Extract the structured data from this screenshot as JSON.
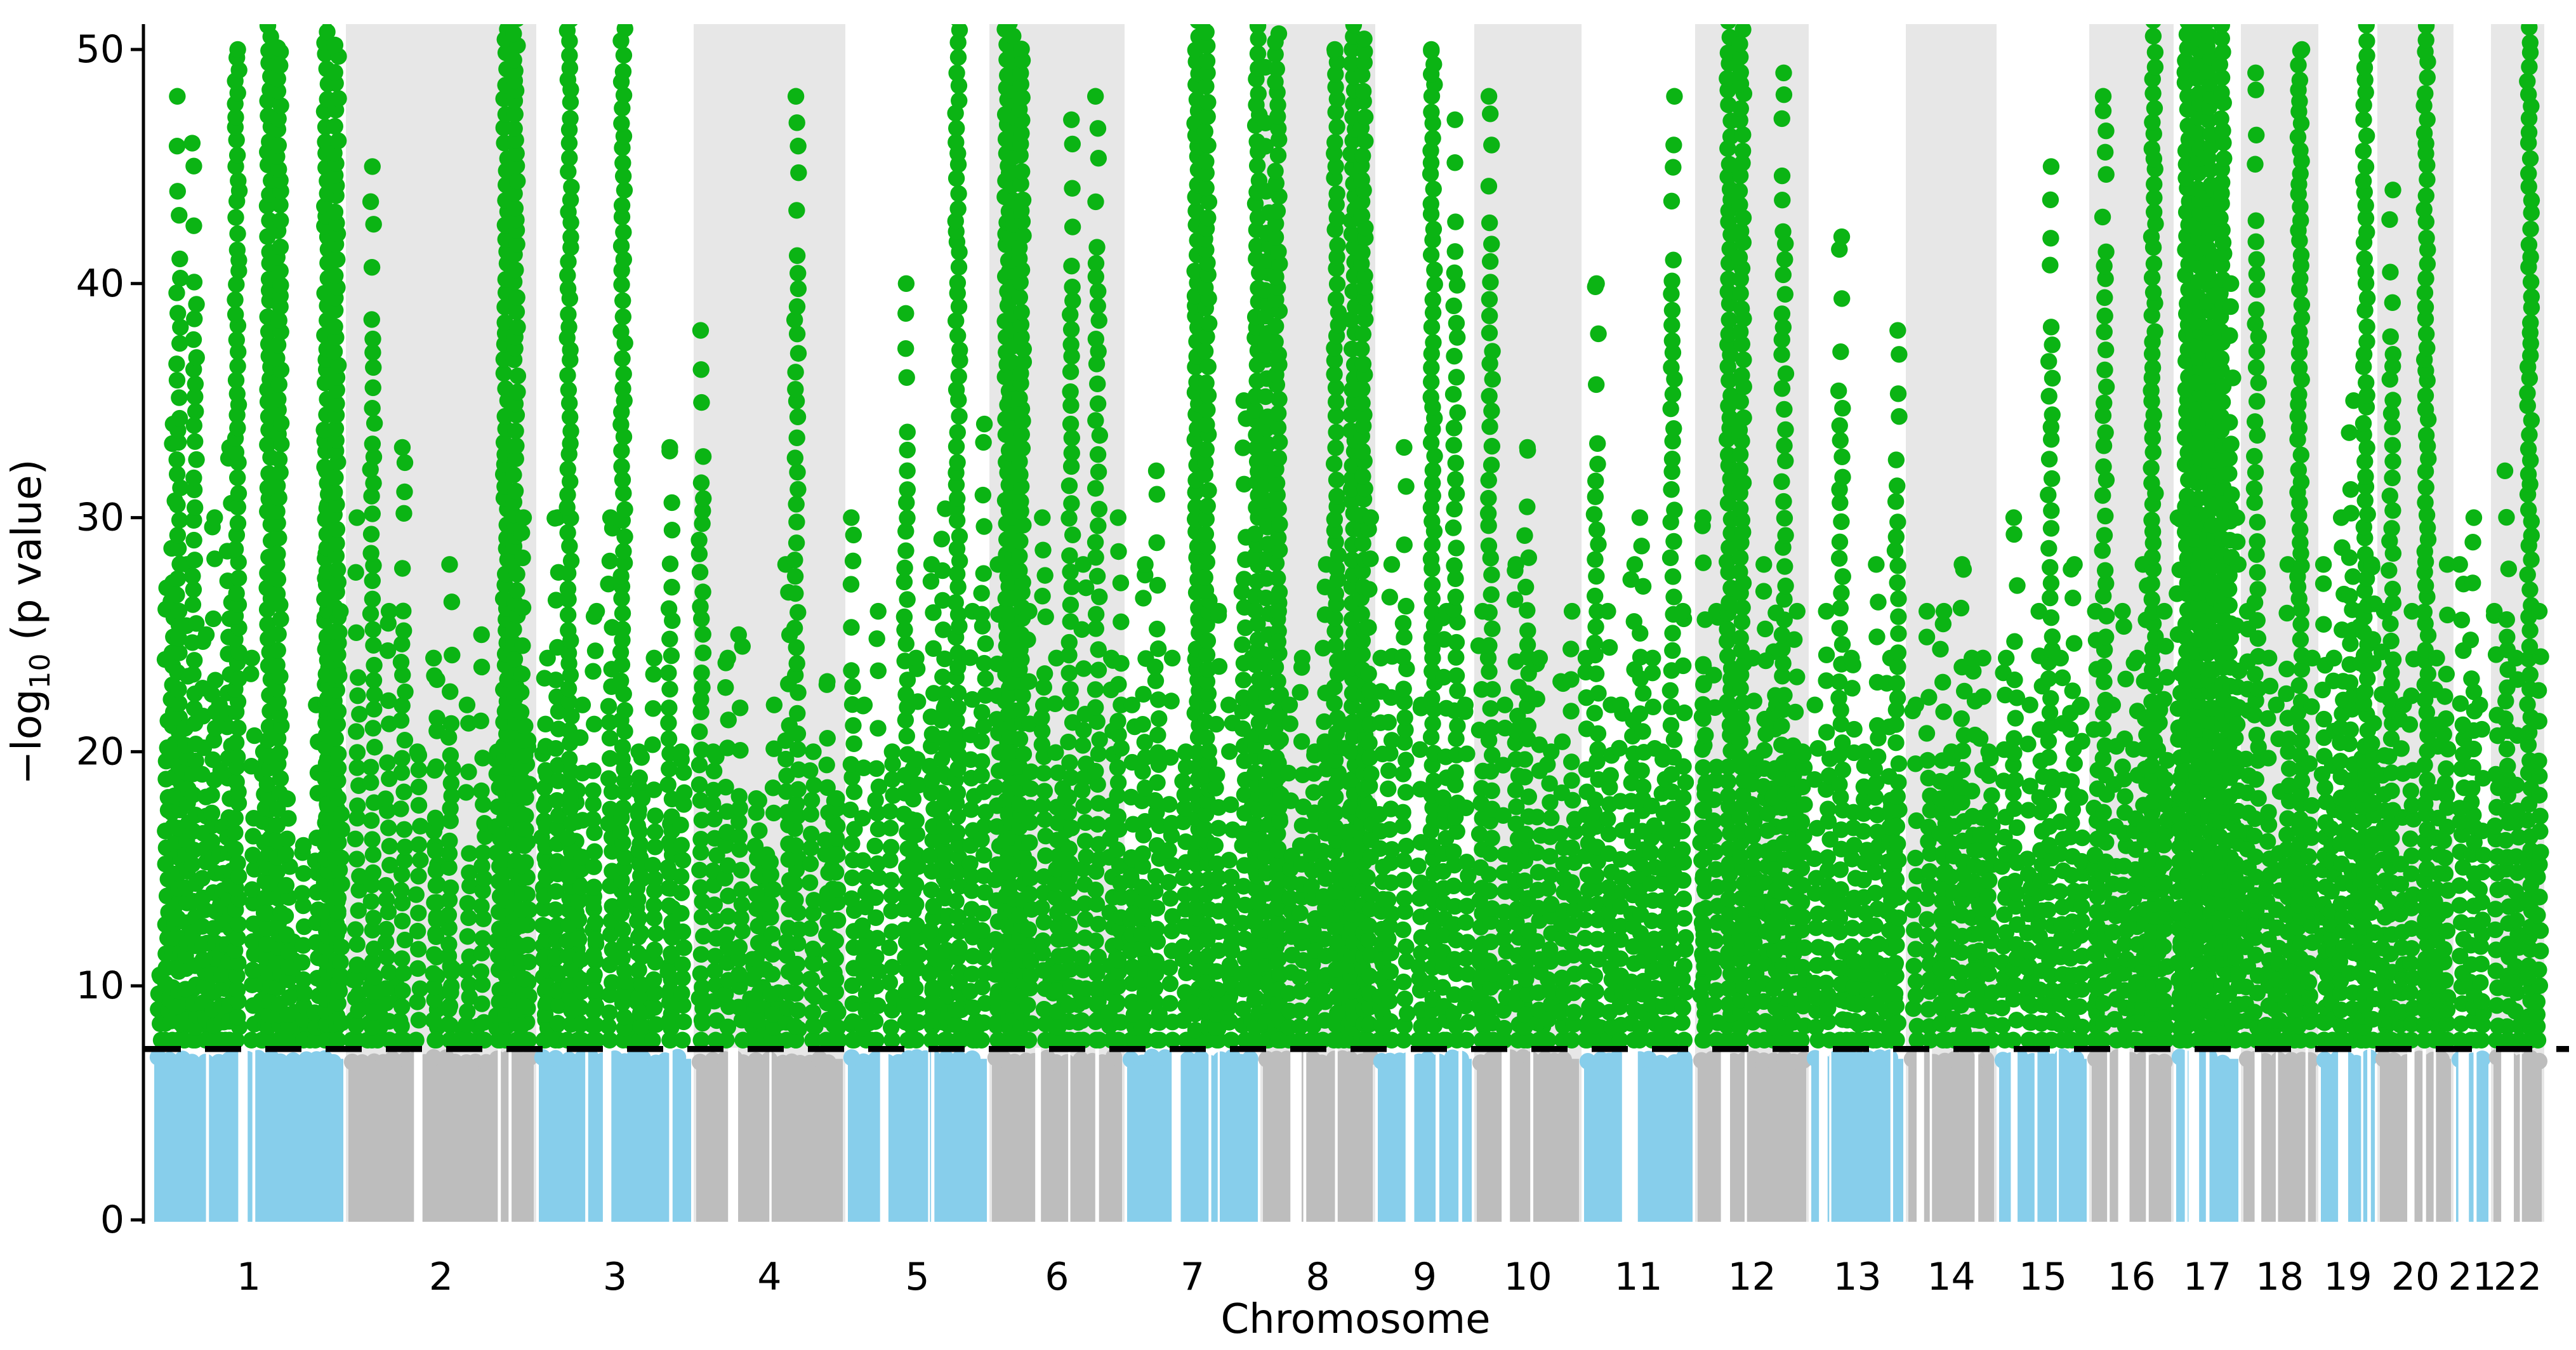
{
  "chart_data": {
    "type": "scatter",
    "subtype": "manhattan-plot",
    "title": "",
    "xlabel": "Chromosome",
    "ylabel": "−log10 (p value)",
    "ylim": [
      0,
      51
    ],
    "yticks": [
      0,
      10,
      20,
      30,
      40,
      50
    ],
    "grid": false,
    "legend": "none",
    "significance_threshold": 7.3,
    "threshold_line": {
      "style": "dashed",
      "color": "#000000"
    },
    "colors": {
      "significant_points": "#0bb414",
      "odd_chromosome_points": "#87ceeb",
      "even_chromosome_points": "#bdbdbd",
      "even_chromosome_band": "#e7e7e7",
      "axis": "#000000"
    },
    "x_categories": [
      "1",
      "2",
      "3",
      "4",
      "5",
      "6",
      "7",
      "8",
      "9",
      "10",
      "11",
      "12",
      "13",
      "14",
      "15",
      "16",
      "17",
      "18",
      "19",
      "20",
      "21",
      "22"
    ],
    "note_heights_of_52_are_offscale_clipped_at_top": true,
    "chromosomes": [
      {
        "label": "1",
        "x0": 239,
        "x1": 545,
        "gap_frac": 0.47,
        "peaks": [
          [
            0.08,
            27
          ],
          [
            0.11,
            34
          ],
          [
            0.14,
            48
          ],
          [
            0.18,
            28
          ],
          [
            0.22,
            46
          ],
          [
            0.27,
            25
          ],
          [
            0.32,
            30
          ],
          [
            0.36,
            22
          ],
          [
            0.4,
            33
          ],
          [
            0.44,
            50
          ],
          [
            0.52,
            24
          ],
          [
            0.58,
            20
          ],
          [
            0.63,
            52,
            2
          ],
          [
            0.7,
            18
          ],
          [
            0.78,
            16
          ],
          [
            0.85,
            22
          ],
          [
            0.9,
            32
          ],
          [
            0.925,
            52,
            2
          ],
          [
            0.97,
            26
          ]
        ]
      },
      {
        "label": "2",
        "x0": 545,
        "x1": 845,
        "gap_frac": 0.38,
        "peaks": [
          [
            0.06,
            30
          ],
          [
            0.14,
            45
          ],
          [
            0.22,
            26
          ],
          [
            0.3,
            33
          ],
          [
            0.38,
            20
          ],
          [
            0.47,
            24
          ],
          [
            0.55,
            28
          ],
          [
            0.64,
            22
          ],
          [
            0.72,
            25
          ],
          [
            0.8,
            20
          ],
          [
            0.865,
            52,
            2
          ],
          [
            0.93,
            30
          ]
        ]
      },
      {
        "label": "3",
        "x0": 845,
        "x1": 1093,
        "gap_frac": 0.45,
        "peaks": [
          [
            0.06,
            24
          ],
          [
            0.13,
            30
          ],
          [
            0.21,
            52
          ],
          [
            0.28,
            22
          ],
          [
            0.37,
            26
          ],
          [
            0.47,
            30
          ],
          [
            0.55,
            52
          ],
          [
            0.66,
            20
          ],
          [
            0.75,
            24
          ],
          [
            0.85,
            33
          ],
          [
            0.93,
            20
          ]
        ]
      },
      {
        "label": "4",
        "x0": 1093,
        "x1": 1332,
        "gap_frac": 0.26,
        "peaks": [
          [
            0.05,
            38
          ],
          [
            0.14,
            20
          ],
          [
            0.22,
            24
          ],
          [
            0.31,
            25
          ],
          [
            0.42,
            18
          ],
          [
            0.52,
            22
          ],
          [
            0.62,
            28
          ],
          [
            0.68,
            48
          ],
          [
            0.78,
            20
          ],
          [
            0.88,
            23
          ],
          [
            0.95,
            18
          ]
        ]
      },
      {
        "label": "5",
        "x0": 1332,
        "x1": 1559,
        "gap_frac": 0.27,
        "peaks": [
          [
            0.05,
            30
          ],
          [
            0.13,
            22
          ],
          [
            0.22,
            26
          ],
          [
            0.32,
            20
          ],
          [
            0.42,
            40
          ],
          [
            0.5,
            24
          ],
          [
            0.6,
            28
          ],
          [
            0.7,
            22
          ],
          [
            0.78,
            52
          ],
          [
            0.88,
            26
          ],
          [
            0.96,
            34
          ]
        ]
      },
      {
        "label": "6",
        "x0": 1559,
        "x1": 1772,
        "gap_frac": 0.36,
        "peaks": [
          [
            0.06,
            28
          ],
          [
            0.13,
            52
          ],
          [
            0.2,
            52,
            2
          ],
          [
            0.3,
            26
          ],
          [
            0.4,
            30
          ],
          [
            0.5,
            24
          ],
          [
            0.6,
            47
          ],
          [
            0.7,
            28
          ],
          [
            0.8,
            48
          ],
          [
            0.9,
            24
          ],
          [
            0.96,
            30
          ]
        ]
      },
      {
        "label": "7",
        "x0": 1772,
        "x1": 1986,
        "gap_frac": 0.38,
        "peaks": [
          [
            0.06,
            22
          ],
          [
            0.14,
            28
          ],
          [
            0.24,
            32
          ],
          [
            0.34,
            24
          ],
          [
            0.44,
            20
          ],
          [
            0.57,
            52,
            2
          ],
          [
            0.68,
            26
          ],
          [
            0.78,
            22
          ],
          [
            0.88,
            35
          ],
          [
            0.95,
            24
          ]
        ]
      },
      {
        "label": "8",
        "x0": 1986,
        "x1": 2167,
        "gap_frac": 0.31,
        "peaks": [
          [
            0.06,
            52,
            3
          ],
          [
            0.16,
            26
          ],
          [
            0.26,
            22
          ],
          [
            0.36,
            24
          ],
          [
            0.46,
            20
          ],
          [
            0.56,
            28
          ],
          [
            0.66,
            50
          ],
          [
            0.76,
            24
          ],
          [
            0.85,
            52,
            2
          ],
          [
            0.95,
            30
          ]
        ]
      },
      {
        "label": "9",
        "x0": 2167,
        "x1": 2323,
        "gap_frac": 0.35,
        "peaks": [
          [
            0.06,
            24
          ],
          [
            0.15,
            28
          ],
          [
            0.3,
            33
          ],
          [
            0.45,
            22
          ],
          [
            0.58,
            50
          ],
          [
            0.7,
            26
          ],
          [
            0.81,
            47
          ],
          [
            0.92,
            22
          ]
        ]
      },
      {
        "label": "10",
        "x0": 2323,
        "x1": 2492,
        "gap_frac": 0.3,
        "peaks": [
          [
            0.06,
            26
          ],
          [
            0.15,
            48
          ],
          [
            0.28,
            22
          ],
          [
            0.4,
            28
          ],
          [
            0.49,
            33
          ],
          [
            0.6,
            24
          ],
          [
            0.7,
            20
          ],
          [
            0.82,
            23
          ],
          [
            0.92,
            26
          ]
        ]
      },
      {
        "label": "11",
        "x0": 2492,
        "x1": 2671,
        "gap_frac": 0.4,
        "peaks": [
          [
            0.05,
            24
          ],
          [
            0.13,
            40
          ],
          [
            0.25,
            26
          ],
          [
            0.35,
            22
          ],
          [
            0.45,
            28
          ],
          [
            0.53,
            30
          ],
          [
            0.63,
            24
          ],
          [
            0.72,
            20
          ],
          [
            0.8,
            48
          ],
          [
            0.9,
            26
          ]
        ]
      },
      {
        "label": "12",
        "x0": 2671,
        "x1": 2850,
        "gap_frac": 0.27,
        "peaks": [
          [
            0.08,
            30
          ],
          [
            0.18,
            26
          ],
          [
            0.3,
            52
          ],
          [
            0.41,
            52
          ],
          [
            0.52,
            24
          ],
          [
            0.62,
            28
          ],
          [
            0.7,
            22
          ],
          [
            0.78,
            49
          ],
          [
            0.88,
            26
          ],
          [
            0.95,
            20
          ]
        ]
      },
      {
        "label": "13",
        "x0": 2850,
        "x1": 3003,
        "gap_frac": 0.15,
        "peaks": [
          [
            0.08,
            22
          ],
          [
            0.2,
            26
          ],
          [
            0.33,
            42
          ],
          [
            0.46,
            24
          ],
          [
            0.58,
            20
          ],
          [
            0.7,
            28
          ],
          [
            0.82,
            24
          ],
          [
            0.91,
            38
          ]
        ]
      },
      {
        "label": "14",
        "x0": 3003,
        "x1": 3146,
        "gap_frac": 0.16,
        "peaks": [
          [
            0.1,
            22
          ],
          [
            0.25,
            26
          ],
          [
            0.4,
            26
          ],
          [
            0.52,
            20
          ],
          [
            0.63,
            28
          ],
          [
            0.74,
            24
          ],
          [
            0.83,
            24
          ],
          [
            0.93,
            20
          ]
        ]
      },
      {
        "label": "15",
        "x0": 3146,
        "x1": 3292,
        "gap_frac": 0.19,
        "peaks": [
          [
            0.08,
            24
          ],
          [
            0.2,
            30
          ],
          [
            0.35,
            22
          ],
          [
            0.48,
            26
          ],
          [
            0.58,
            45
          ],
          [
            0.7,
            24
          ],
          [
            0.82,
            28
          ],
          [
            0.92,
            22
          ]
        ]
      },
      {
        "label": "16",
        "x0": 3292,
        "x1": 3425,
        "gap_frac": 0.41,
        "peaks": [
          [
            0.08,
            26
          ],
          [
            0.18,
            48
          ],
          [
            0.3,
            22
          ],
          [
            0.42,
            26
          ],
          [
            0.55,
            24
          ],
          [
            0.66,
            28
          ],
          [
            0.76,
            52
          ],
          [
            0.9,
            26
          ]
        ]
      },
      {
        "label": "17",
        "x0": 3425,
        "x1": 3531,
        "gap_frac": 0.3,
        "peaks": [
          [
            0.08,
            30
          ],
          [
            0.2,
            52
          ],
          [
            0.33,
            46
          ],
          [
            0.45,
            52,
            2
          ],
          [
            0.6,
            44
          ],
          [
            0.72,
            52
          ],
          [
            0.85,
            40
          ],
          [
            0.94,
            30
          ]
        ]
      },
      {
        "label": "18",
        "x0": 3531,
        "x1": 3653,
        "gap_frac": 0.22,
        "peaks": [
          [
            0.08,
            26
          ],
          [
            0.2,
            49
          ],
          [
            0.35,
            24
          ],
          [
            0.48,
            22
          ],
          [
            0.6,
            28
          ],
          [
            0.76,
            50
          ],
          [
            0.9,
            24
          ]
        ]
      },
      {
        "label": "19",
        "x0": 3653,
        "x1": 3746,
        "gap_frac": 0.42,
        "peaks": [
          [
            0.1,
            28
          ],
          [
            0.25,
            24
          ],
          [
            0.4,
            30
          ],
          [
            0.56,
            35
          ],
          [
            0.7,
            26
          ],
          [
            0.8,
            52
          ],
          [
            0.92,
            28
          ]
        ]
      },
      {
        "label": "20",
        "x0": 3746,
        "x1": 3866,
        "gap_frac": 0.44,
        "peaks": [
          [
            0.08,
            26
          ],
          [
            0.18,
            44
          ],
          [
            0.32,
            22
          ],
          [
            0.45,
            26
          ],
          [
            0.64,
            52
          ],
          [
            0.78,
            24
          ],
          [
            0.9,
            28
          ]
        ]
      },
      {
        "label": "21",
        "x0": 3866,
        "x1": 3925,
        "gap_frac": 0.27,
        "peaks": [
          [
            0.22,
            28
          ],
          [
            0.5,
            30
          ],
          [
            0.75,
            22
          ]
        ]
      },
      {
        "label": "22",
        "x0": 3925,
        "x1": 4009,
        "gap_frac": 0.29,
        "peaks": [
          [
            0.1,
            26
          ],
          [
            0.3,
            32
          ],
          [
            0.5,
            24
          ],
          [
            0.72,
            52
          ],
          [
            0.9,
            26
          ]
        ]
      }
    ]
  }
}
